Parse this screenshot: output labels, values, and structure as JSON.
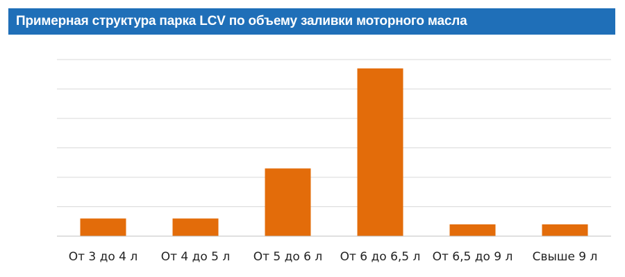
{
  "header": {
    "title": "Примерная структура парка LCV по объему заливки моторного масла"
  },
  "colors": {
    "header_bg": "#1f6fb8",
    "bar": "#e36c0a",
    "grid": "#d9d9d9",
    "axis": "#bfbfbf"
  },
  "chart_data": {
    "type": "bar",
    "title": "Примерная структура парка LCV по объему заливки моторного масла",
    "xlabel": "",
    "ylabel": "",
    "categories": [
      "От 3 до 4 л",
      "От 4 до 5 л",
      "От 5 до 6 л",
      "От 6 до 6,5 л",
      "От 6,5 до 9 л",
      "Свыше 9 л"
    ],
    "values": [
      6,
      6,
      23,
      57,
      4,
      4
    ],
    "ylim": [
      0,
      60
    ],
    "gridlines": [
      10,
      20,
      30,
      40,
      50,
      60
    ],
    "grid": true,
    "legend": "none"
  }
}
